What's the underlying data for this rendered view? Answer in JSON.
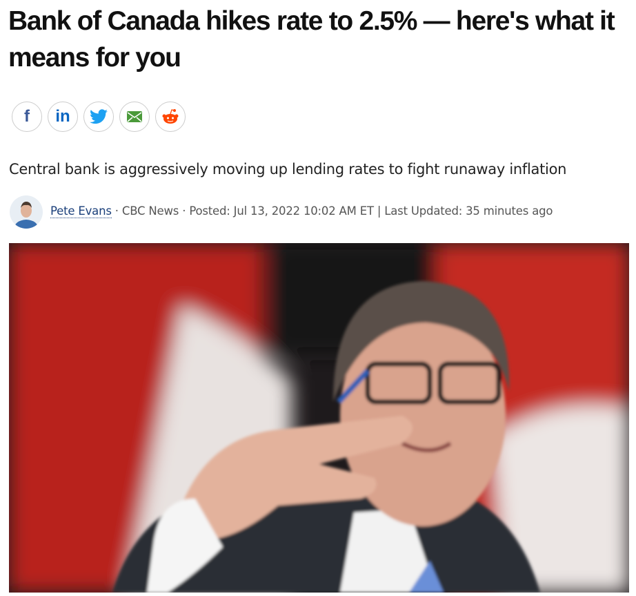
{
  "article": {
    "headline": "Bank of Canada hikes rate to 2.5% — here's what it means for you",
    "share": {
      "facebook": "f",
      "linkedin": "in"
    },
    "subheadline": "Central bank is aggressively moving up lending rates to fight runaway inflation",
    "byline": {
      "author": "Pete Evans",
      "separators": [
        "·",
        "·",
        "|"
      ],
      "source": "CBC News",
      "posted": "Posted: Jul 13, 2022 10:02 AM ET",
      "updated": "Last Updated: 35 minutes ago"
    }
  }
}
